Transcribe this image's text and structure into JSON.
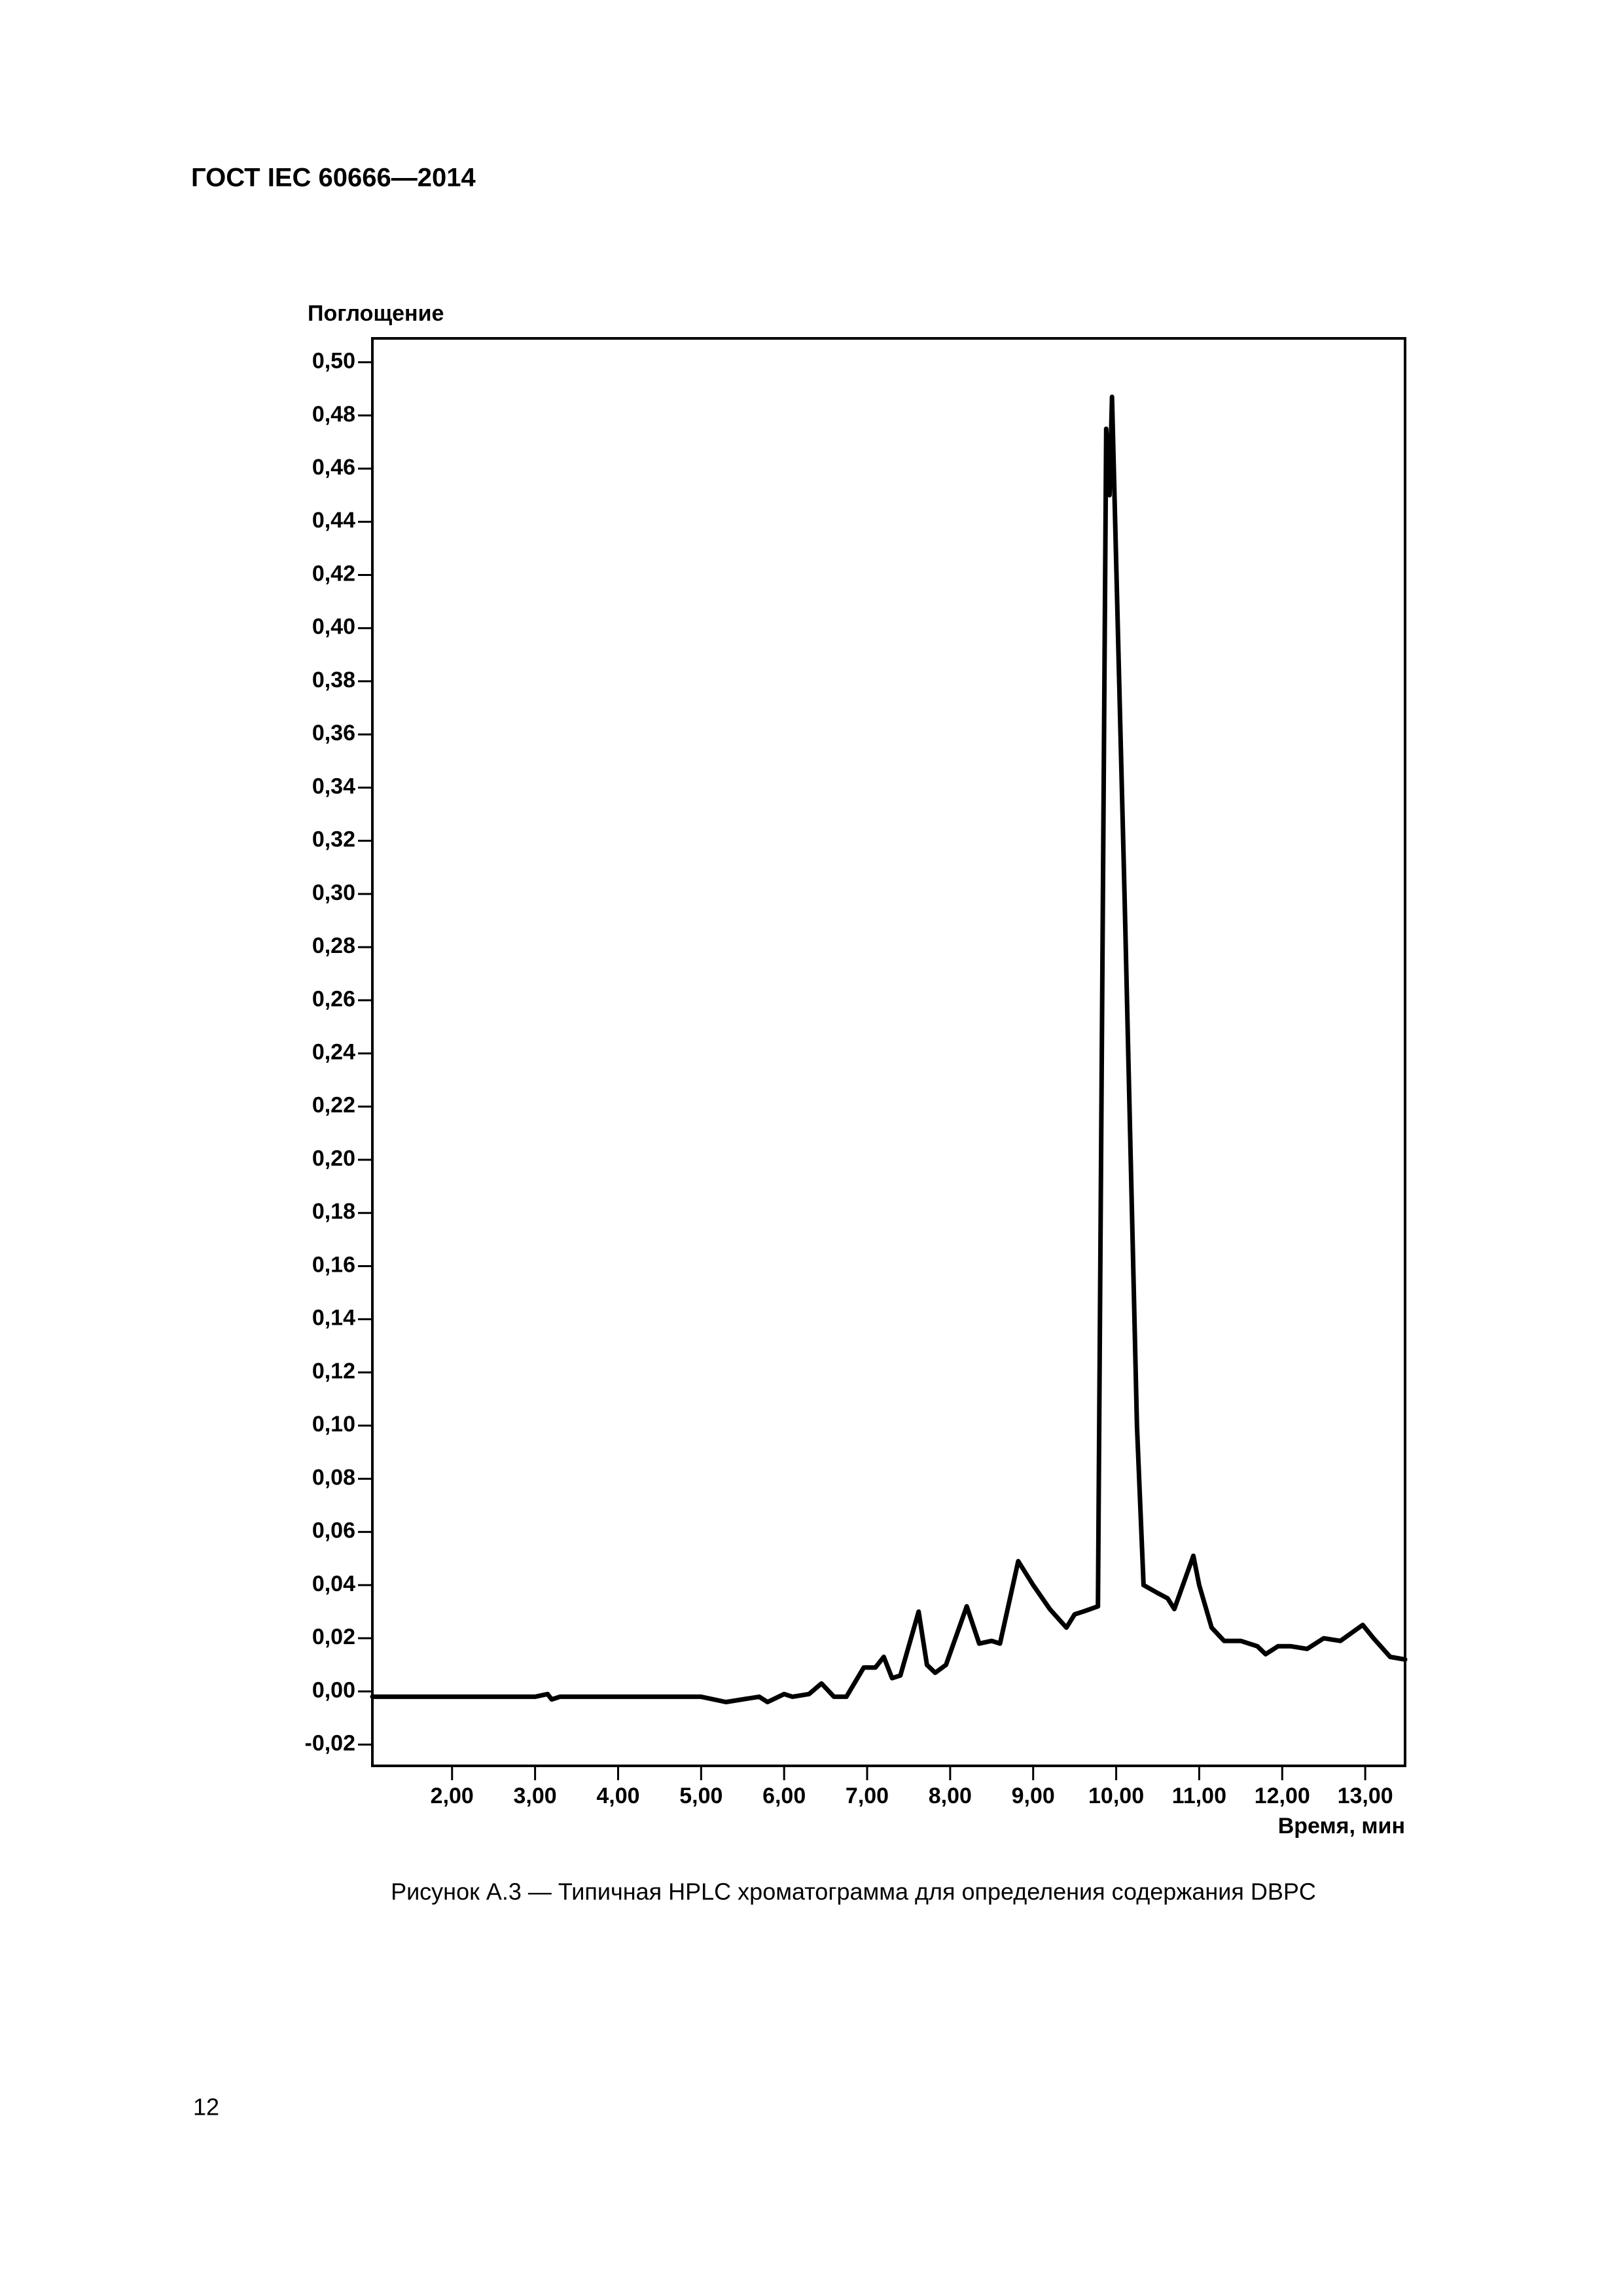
{
  "header": {
    "title": "ГОСТ IEC 60666—2014"
  },
  "chart_data": {
    "type": "line",
    "y_label": "Поглощение",
    "x_label": "Время, мин",
    "color": "#000000",
    "x": [
      1.04,
      3.0,
      3.15,
      3.2,
      3.3,
      5.0,
      5.3,
      5.7,
      5.8,
      6.0,
      6.1,
      6.3,
      6.45,
      6.6,
      6.75,
      6.96,
      7.1,
      7.2,
      7.3,
      7.4,
      7.62,
      7.72,
      7.82,
      7.95,
      8.2,
      8.35,
      8.5,
      8.6,
      8.82,
      9.0,
      9.2,
      9.4,
      9.5,
      9.6,
      9.78,
      9.84,
      9.88,
      9.92,
      9.95,
      10.1,
      10.25,
      10.33,
      10.5,
      10.62,
      10.7,
      10.93,
      11.0,
      11.15,
      11.3,
      11.5,
      11.7,
      11.8,
      11.95,
      12.1,
      12.3,
      12.5,
      12.7,
      12.97,
      13.1,
      13.3,
      13.48
    ],
    "values": [
      -0.002,
      -0.002,
      -0.001,
      -0.003,
      -0.002,
      -0.002,
      -0.004,
      -0.002,
      -0.004,
      -0.001,
      -0.002,
      -0.001,
      0.003,
      -0.002,
      -0.002,
      0.009,
      0.009,
      0.013,
      0.005,
      0.006,
      0.03,
      0.01,
      0.007,
      0.01,
      0.032,
      0.018,
      0.019,
      0.018,
      0.049,
      0.04,
      0.031,
      0.024,
      0.029,
      0.03,
      0.032,
      0.3,
      0.475,
      0.45,
      0.487,
      0.3,
      0.1,
      0.04,
      0.037,
      0.035,
      0.031,
      0.051,
      0.04,
      0.024,
      0.019,
      0.019,
      0.017,
      0.014,
      0.017,
      0.017,
      0.016,
      0.02,
      0.019,
      0.025,
      0.02,
      0.013,
      0.012
    ],
    "xlim": [
      1.04,
      13.48
    ],
    "ylim": [
      -0.028,
      0.509
    ],
    "xticks": [
      {
        "value": 2,
        "label": "2,00"
      },
      {
        "value": 3,
        "label": "3,00"
      },
      {
        "value": 4,
        "label": "4,00"
      },
      {
        "value": 5,
        "label": "5,00"
      },
      {
        "value": 6,
        "label": "6,00"
      },
      {
        "value": 7,
        "label": "7,00"
      },
      {
        "value": 8,
        "label": "8,00"
      },
      {
        "value": 9,
        "label": "9,00"
      },
      {
        "value": 10,
        "label": "10,00"
      },
      {
        "value": 11,
        "label": "11,00"
      },
      {
        "value": 12,
        "label": "12,00"
      },
      {
        "value": 13,
        "label": "13,00"
      }
    ],
    "yticks": [
      {
        "value": -0.02,
        "label": "-0,02"
      },
      {
        "value": 0,
        "label": "0,00"
      },
      {
        "value": 0.02,
        "label": "0,02"
      },
      {
        "value": 0.04,
        "label": "0,04"
      },
      {
        "value": 0.06,
        "label": "0,06"
      },
      {
        "value": 0.08,
        "label": "0,08"
      },
      {
        "value": 0.1,
        "label": "0,10"
      },
      {
        "value": 0.12,
        "label": "0,12"
      },
      {
        "value": 0.14,
        "label": "0,14"
      },
      {
        "value": 0.16,
        "label": "0,16"
      },
      {
        "value": 0.18,
        "label": "0,18"
      },
      {
        "value": 0.2,
        "label": "0,20"
      },
      {
        "value": 0.22,
        "label": "0,22"
      },
      {
        "value": 0.24,
        "label": "0,24"
      },
      {
        "value": 0.26,
        "label": "0,26"
      },
      {
        "value": 0.28,
        "label": "0,28"
      },
      {
        "value": 0.3,
        "label": "0,30"
      },
      {
        "value": 0.32,
        "label": "0,32"
      },
      {
        "value": 0.34,
        "label": "0,34"
      },
      {
        "value": 0.36,
        "label": "0,36"
      },
      {
        "value": 0.38,
        "label": "0,38"
      },
      {
        "value": 0.4,
        "label": "0,40"
      },
      {
        "value": 0.42,
        "label": "0,42"
      },
      {
        "value": 0.44,
        "label": "0,44"
      },
      {
        "value": 0.46,
        "label": "0,46"
      },
      {
        "value": 0.48,
        "label": "0,48"
      },
      {
        "value": 0.5,
        "label": "0,50"
      }
    ]
  },
  "caption": "Рисунок  А.3 — Типичная HPLC хроматограмма для определения содержания DBPC",
  "page_number": "12"
}
